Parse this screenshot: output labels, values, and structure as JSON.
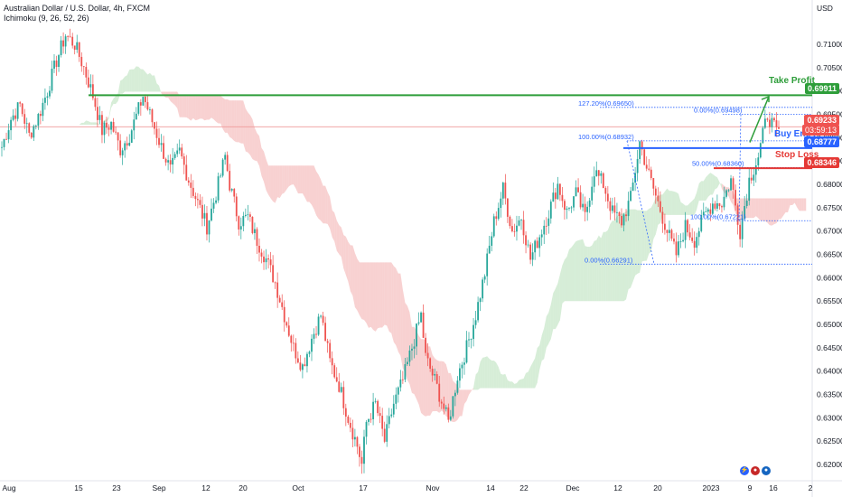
{
  "header": {
    "title": "Australian Dollar / U.S. Dollar, 4h, FXCM",
    "indicator": "Ichimoku (9, 26, 52, 26)",
    "currency": "USD"
  },
  "colors": {
    "up": "#26a69a",
    "down": "#ef5350",
    "cloud_green": "#a5d6a7",
    "cloud_red": "#ef9a9a",
    "take_profit": "#2e9e3a",
    "entry": "#2962ff",
    "stop": "#e53935",
    "fib": "#2962ff"
  },
  "annotations": {
    "take_profit": {
      "label": "Take Profit",
      "price": "0.69911"
    },
    "buy_entry": {
      "label": "Buy Entry",
      "price": "0.68777"
    },
    "stop_loss": {
      "label": "Stop Loss",
      "price": "0.68346"
    },
    "current_price": "0.69233",
    "countdown": "03:59:13"
  },
  "fib_levels": [
    {
      "label": "127.20%(0.69650)"
    },
    {
      "label": "100.00%(0.68932)"
    },
    {
      "label": "0.00%(0.66291)"
    },
    {
      "label": "0.00%(0.69498)"
    },
    {
      "label": "50.00%(0.68360)"
    },
    {
      "label": "100.00%(0.67221)"
    }
  ],
  "chart_data": {
    "type": "candlestick",
    "title": "Australian Dollar / U.S. Dollar, 4h, FXCM",
    "ylabel": "USD",
    "ylim": [
      0.6165,
      0.7195
    ],
    "y_ticks": [
      "0.71000",
      "0.70500",
      "0.70000",
      "0.69500",
      "0.69000",
      "0.68500",
      "0.68000",
      "0.67500",
      "0.67000",
      "0.66500",
      "0.66000",
      "0.65500",
      "0.65000",
      "0.64500",
      "0.64000",
      "0.63500",
      "0.63000",
      "0.62500",
      "0.62000"
    ],
    "x_ticks": [
      "Aug",
      "15",
      "23",
      "Sep",
      "12",
      "20",
      "Oct",
      "17",
      "Nov",
      "14",
      "22",
      "Dec",
      "12",
      "20",
      "2023",
      "9",
      "16",
      "2"
    ],
    "price_path": [
      [
        0,
        0.688
      ],
      [
        4,
        0.694
      ],
      [
        8,
        0.697
      ],
      [
        12,
        0.6905
      ],
      [
        16,
        0.6945
      ],
      [
        20,
        0.7
      ],
      [
        24,
        0.7065
      ],
      [
        28,
        0.712
      ],
      [
        32,
        0.71
      ],
      [
        36,
        0.705
      ],
      [
        40,
        0.699
      ],
      [
        44,
        0.6915
      ],
      [
        48,
        0.693
      ],
      [
        52,
        0.6875
      ],
      [
        56,
        0.6905
      ],
      [
        60,
        0.696
      ],
      [
        62,
        0.699
      ],
      [
        66,
        0.6935
      ],
      [
        70,
        0.688
      ],
      [
        74,
        0.683
      ],
      [
        78,
        0.687
      ],
      [
        82,
        0.681
      ],
      [
        86,
        0.676
      ],
      [
        90,
        0.671
      ],
      [
        94,
        0.678
      ],
      [
        98,
        0.686
      ],
      [
        100,
        0.68
      ],
      [
        104,
        0.672
      ],
      [
        108,
        0.673
      ],
      [
        112,
        0.668
      ],
      [
        116,
        0.664
      ],
      [
        120,
        0.659
      ],
      [
        124,
        0.652
      ],
      [
        128,
        0.645
      ],
      [
        132,
        0.641
      ],
      [
        136,
        0.647
      ],
      [
        140,
        0.652
      ],
      [
        144,
        0.642
      ],
      [
        148,
        0.637
      ],
      [
        152,
        0.63
      ],
      [
        156,
        0.624
      ],
      [
        158,
        0.62
      ],
      [
        160,
        0.629
      ],
      [
        164,
        0.633
      ],
      [
        168,
        0.625
      ],
      [
        172,
        0.633
      ],
      [
        176,
        0.638
      ],
      [
        180,
        0.645
      ],
      [
        184,
        0.652
      ],
      [
        186,
        0.643
      ],
      [
        190,
        0.638
      ],
      [
        194,
        0.632
      ],
      [
        196,
        0.629
      ],
      [
        200,
        0.639
      ],
      [
        204,
        0.645
      ],
      [
        208,
        0.652
      ],
      [
        212,
        0.661
      ],
      [
        216,
        0.672
      ],
      [
        220,
        0.679
      ],
      [
        224,
        0.67
      ],
      [
        228,
        0.673
      ],
      [
        232,
        0.664
      ],
      [
        236,
        0.669
      ],
      [
        240,
        0.674
      ],
      [
        244,
        0.68
      ],
      [
        248,
        0.674
      ],
      [
        252,
        0.678
      ],
      [
        256,
        0.673
      ],
      [
        260,
        0.683
      ],
      [
        264,
        0.68
      ],
      [
        268,
        0.674
      ],
      [
        272,
        0.672
      ],
      [
        276,
        0.677
      ],
      [
        280,
        0.689
      ],
      [
        284,
        0.682
      ],
      [
        288,
        0.676
      ],
      [
        292,
        0.67
      ],
      [
        296,
        0.665
      ],
      [
        300,
        0.671
      ],
      [
        304,
        0.668
      ],
      [
        308,
        0.673
      ],
      [
        312,
        0.676
      ],
      [
        316,
        0.676
      ],
      [
        320,
        0.681
      ],
      [
        324,
        0.67
      ],
      [
        328,
        0.681
      ],
      [
        332,
        0.686
      ],
      [
        336,
        0.695
      ],
      [
        340,
        0.691
      ]
    ]
  }
}
